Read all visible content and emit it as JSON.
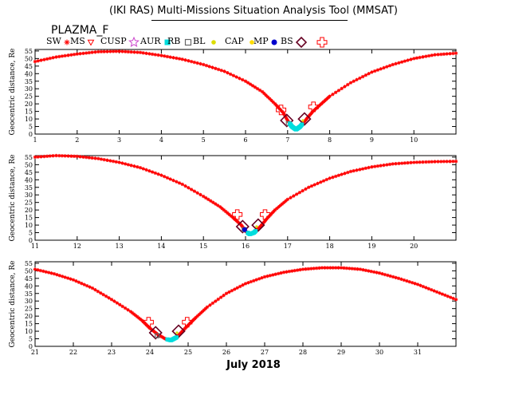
{
  "header": {
    "title": "(IKI RAS) Multi-Missions Situation Analysis Tool (MMSAT)",
    "satellite": "PLAZMA_F",
    "month_label": "July 2018"
  },
  "legend": [
    {
      "label": "SW",
      "symbol": "asterisk",
      "color": "#ff0000"
    },
    {
      "label": "MS",
      "symbol": "triangle-down",
      "color": "#ff0000"
    },
    {
      "label": "CUSP",
      "symbol": "star",
      "color": "#cc44cc"
    },
    {
      "label": "AUR",
      "symbol": "square",
      "color": "#00dddd"
    },
    {
      "label": "RB",
      "symbol": "square-open",
      "color": "#666666"
    },
    {
      "label": "BL",
      "symbol": "dot",
      "color": "#dddd00"
    },
    {
      "label": "CAP",
      "symbol": "dot",
      "color": "#ffdd00"
    },
    {
      "label": "MP",
      "symbol": "circle",
      "color": "#0000cc"
    },
    {
      "label": "BS",
      "symbol": "diamond",
      "color": "#660022"
    },
    {
      "label": "",
      "symbol": "cross",
      "color": "#ff0000"
    }
  ],
  "chart_data": [
    {
      "type": "line",
      "ylabel": "Geocentric distance, Re",
      "xlim": [
        1,
        11
      ],
      "ylim": [
        0,
        56
      ],
      "x_ticks": [
        1,
        2,
        3,
        4,
        5,
        6,
        7,
        8,
        9,
        10
      ],
      "y_ticks": [
        0,
        5,
        10,
        15,
        20,
        25,
        30,
        35,
        40,
        45,
        50,
        55
      ],
      "series": [
        {
          "x": [
            1,
            1.5,
            2,
            2.5,
            3,
            3.5,
            4,
            4.5,
            5,
            5.5,
            6,
            6.4,
            6.7,
            6.9,
            7,
            7.1,
            7.2,
            7.3,
            7.45,
            7.6,
            7.8,
            8,
            8.5,
            9,
            9.5,
            10,
            10.5,
            11
          ],
          "y": [
            48,
            51,
            53,
            54.5,
            54.8,
            54,
            52,
            49.5,
            46,
            41.5,
            35,
            28,
            20,
            14,
            9,
            5,
            3,
            5,
            10,
            15,
            20,
            25,
            34,
            41,
            46,
            50,
            52.5,
            53.5
          ]
        }
      ],
      "regions": {
        "bs_inbound": [
          6.92,
          11
        ],
        "bs_outbound": [
          7.5,
          13
        ],
        "mp_inbound": [
          6.98,
          9
        ],
        "mp_outbound": [
          7.4,
          10
        ],
        "aur": [
          7.05,
          7.35
        ]
      }
    },
    {
      "type": "line",
      "ylabel": "Geocentric distance, Re",
      "xlim": [
        11,
        21
      ],
      "ylim": [
        0,
        56
      ],
      "x_ticks": [
        11,
        12,
        13,
        14,
        15,
        16,
        17,
        18,
        19,
        20
      ],
      "y_ticks": [
        0,
        5,
        10,
        15,
        20,
        25,
        30,
        35,
        40,
        45,
        50,
        55
      ],
      "series": [
        {
          "x": [
            11,
            11.5,
            12,
            12.5,
            13,
            13.5,
            14,
            14.5,
            15,
            15.4,
            15.7,
            15.9,
            16,
            16.1,
            16.2,
            16.35,
            16.5,
            16.7,
            17,
            17.5,
            18,
            18.5,
            19,
            19.5,
            20,
            20.5,
            21
          ],
          "y": [
            55,
            56,
            55.5,
            54,
            51.5,
            48,
            43,
            37,
            29,
            22,
            15,
            10,
            6,
            4,
            5,
            9,
            14,
            20,
            27,
            35,
            41,
            45.5,
            48.5,
            50.5,
            51.5,
            52,
            52.2
          ]
        }
      ],
      "regions": {
        "bs_inbound": [
          15.88,
          12
        ],
        "bs_outbound": [
          16.35,
          12
        ],
        "mp_inbound": [
          15.93,
          9
        ],
        "mp_outbound": [
          16.3,
          10
        ],
        "aur": [
          16.05,
          16.25
        ]
      }
    },
    {
      "type": "line",
      "ylabel": "Geocentric distance, Re",
      "xlim": [
        21,
        32
      ],
      "ylim": [
        0,
        56
      ],
      "x_ticks": [
        21,
        22,
        23,
        24,
        25,
        26,
        27,
        28,
        29,
        30,
        31
      ],
      "y_ticks": [
        0,
        5,
        10,
        15,
        20,
        25,
        30,
        35,
        40,
        45,
        50,
        55
      ],
      "series": [
        {
          "x": [
            21,
            21.5,
            22,
            22.5,
            23,
            23.5,
            23.8,
            24,
            24.2,
            24.4,
            24.55,
            24.7,
            24.85,
            25,
            25.2,
            25.5,
            26,
            26.5,
            27,
            27.5,
            28,
            28.5,
            29,
            29.5,
            30,
            30.5,
            31,
            31.5,
            32
          ],
          "y": [
            51,
            48,
            44,
            38.5,
            31,
            23,
            17,
            12,
            8,
            5,
            4,
            6,
            10,
            14,
            19,
            26,
            35,
            41.5,
            46,
            49,
            51,
            52,
            52,
            51,
            48.5,
            45,
            41,
            36,
            31
          ]
        }
      ],
      "regions": {
        "bs_inbound": [
          24.05,
          11
        ],
        "bs_outbound": [
          24.85,
          11
        ],
        "mp_inbound": [
          24.15,
          9
        ],
        "mp_outbound": [
          24.75,
          10
        ],
        "aur": [
          24.45,
          24.7
        ]
      }
    }
  ]
}
